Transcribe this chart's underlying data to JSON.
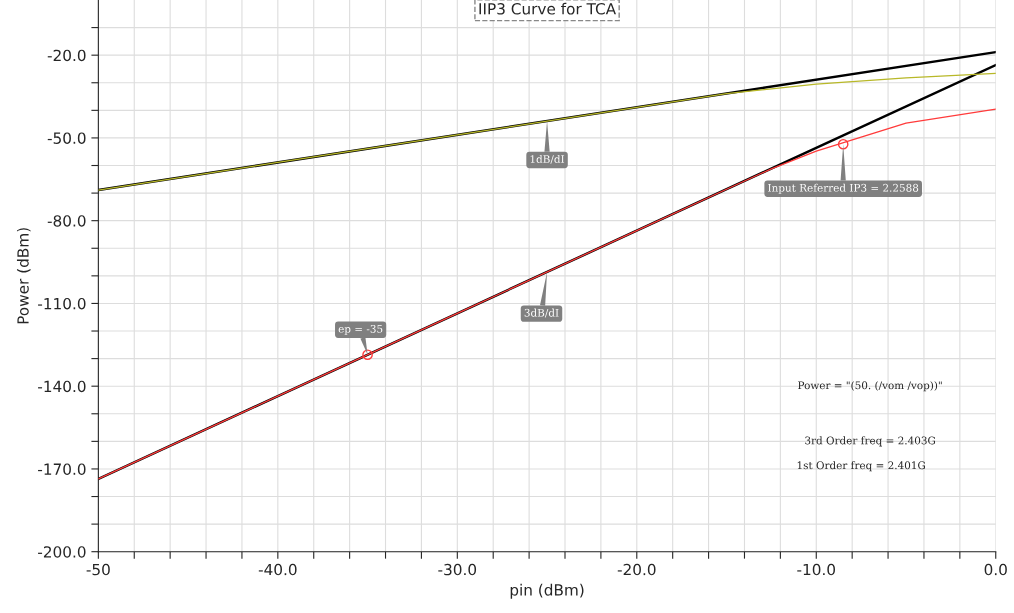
{
  "chart_data": {
    "type": "line",
    "title": "IIP3 Curve for TCA",
    "xlabel": "pin (dBm)",
    "ylabel": "Power (dBm)",
    "xlim": [
      -50,
      0
    ],
    "ylim": [
      -200,
      0
    ],
    "xticks": [
      -50,
      {
        "value": -48,
        "label": null
      },
      {
        "value": -46,
        "label": null
      },
      {
        "value": -44,
        "label": null
      },
      {
        "value": -42,
        "label": null
      },
      {
        "value": -40,
        "label": "-40.0"
      },
      {
        "value": -38,
        "label": null
      },
      {
        "value": -36,
        "label": null
      },
      {
        "value": -34,
        "label": null
      },
      {
        "value": -32,
        "label": null
      },
      {
        "value": -30,
        "label": "-30.0"
      },
      {
        "value": -28,
        "label": null
      },
      {
        "value": -26,
        "label": null
      },
      {
        "value": -24,
        "label": null
      },
      {
        "value": -22,
        "label": null
      },
      {
        "value": -20,
        "label": "-20.0"
      },
      {
        "value": -18,
        "label": null
      },
      {
        "value": -16,
        "label": null
      },
      {
        "value": -14,
        "label": null
      },
      {
        "value": -12,
        "label": null
      },
      {
        "value": -10,
        "label": "-10.0"
      },
      {
        "value": -8,
        "label": null
      },
      {
        "value": -6,
        "label": null
      },
      {
        "value": -4,
        "label": null
      },
      {
        "value": -2,
        "label": null
      },
      {
        "value": 0,
        "label": "0.0"
      }
    ],
    "yticks": [
      {
        "value": -200,
        "label": "-200.0"
      },
      {
        "value": -190,
        "label": null
      },
      {
        "value": -180,
        "label": null
      },
      {
        "value": -170,
        "label": "-170.0"
      },
      {
        "value": -160,
        "label": null
      },
      {
        "value": -150,
        "label": null
      },
      {
        "value": -140,
        "label": "-140.0"
      },
      {
        "value": -130,
        "label": null
      },
      {
        "value": -120,
        "label": null
      },
      {
        "value": -110,
        "label": "-110.0"
      },
      {
        "value": -100,
        "label": null
      },
      {
        "value": -90,
        "label": null
      },
      {
        "value": -80,
        "label": "-80.0"
      },
      {
        "value": -70,
        "label": null
      },
      {
        "value": -60,
        "label": null
      },
      {
        "value": -50,
        "label": "-50.0"
      },
      {
        "value": -40,
        "label": null
      },
      {
        "value": -30,
        "label": null
      },
      {
        "value": -20,
        "label": "-20.0"
      },
      {
        "value": -10,
        "label": null
      }
    ],
    "grid": true,
    "legend": false,
    "series": [
      {
        "color": "#b8b828",
        "x": [
          -50,
          -40,
          -30,
          -20,
          -15,
          -10,
          -5,
          0
        ],
        "values": [
          -68.9,
          -58.9,
          -48.9,
          -38.9,
          -33.9,
          -30.5,
          -28.2,
          -26.6
        ]
      },
      {
        "color": "#ff3b3b",
        "x": [
          -50,
          -40,
          -30,
          -20,
          -15,
          -12.5,
          -10,
          -5,
          0
        ],
        "values": [
          -173.6,
          -143.6,
          -113.6,
          -83.6,
          -68.6,
          -61.2,
          -54.8,
          -44.6,
          -39.6
        ]
      },
      {
        "color": "#000000",
        "x": [
          -50,
          0
        ],
        "values": [
          -68.9,
          -18.9
        ]
      },
      {
        "color": "#000000",
        "x": [
          -50,
          0
        ],
        "values": [
          -173.6,
          -23.6
        ]
      },
      {
        "type": "scatter",
        "marker": "circle",
        "color": "#ff3b3b",
        "x": [
          -35,
          -8.5
        ],
        "values": [
          -128.6,
          -52.3
        ]
      }
    ],
    "annotations": [
      {
        "text": "1dB/dI",
        "x": -25,
        "y": -43.9
      },
      {
        "text": "3dB/dI",
        "x": -25,
        "y": -98.6
      },
      {
        "text": "ep = -35",
        "x": -35,
        "y": -128.6
      },
      {
        "text": "Input Referred IP3 = 2.2588",
        "x": -8.5,
        "y": -52.3
      },
      "Power = \"(50. (/vom /vop))\"",
      "3rd Order freq = 2.403G",
      "1st Order freq = 2.401G"
    ]
  }
}
